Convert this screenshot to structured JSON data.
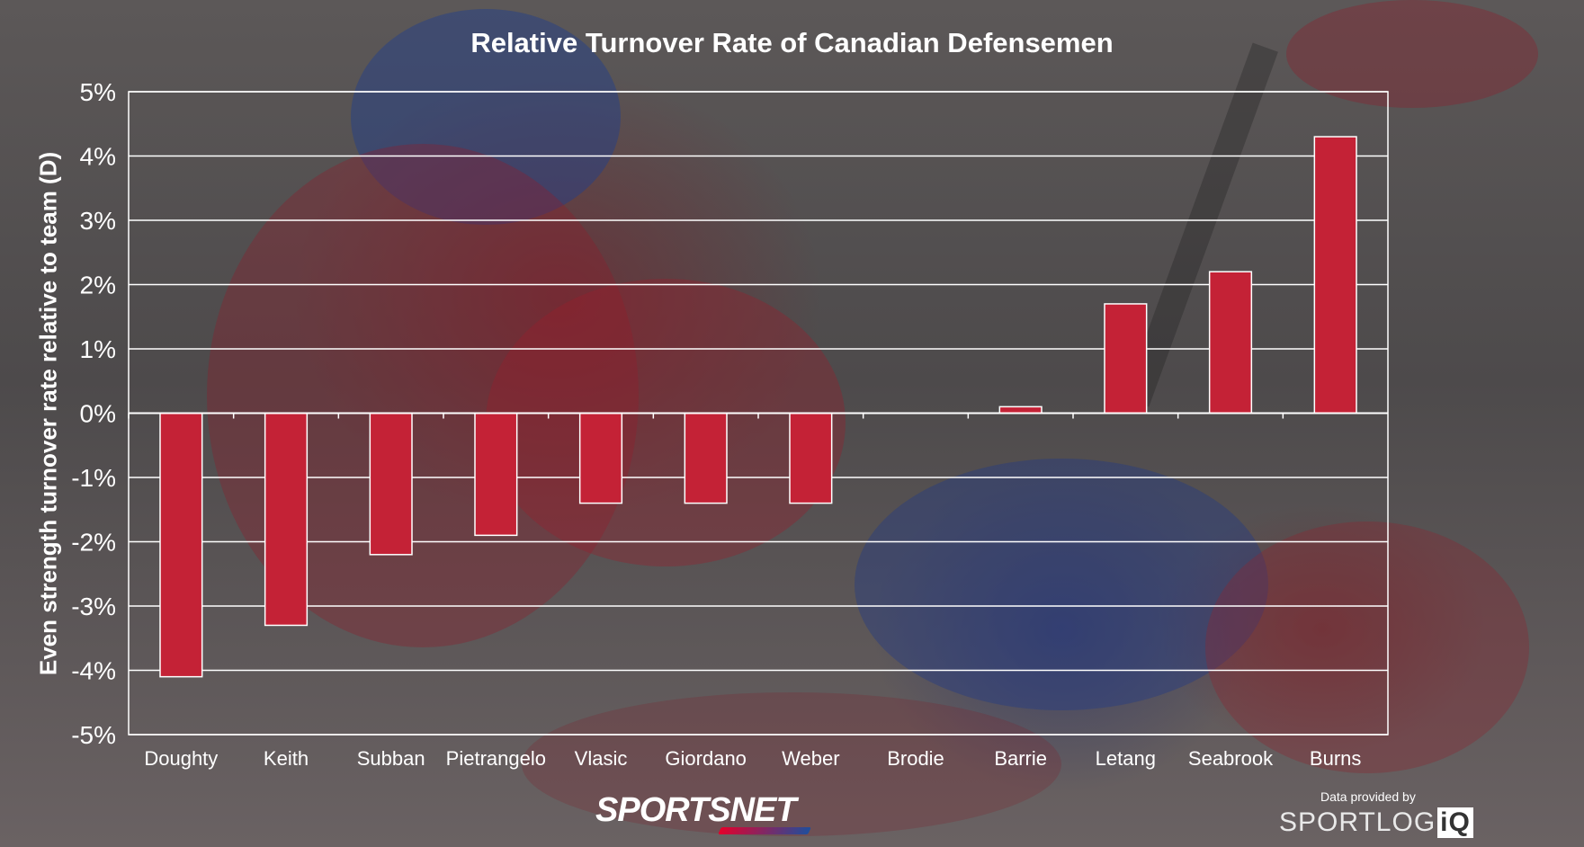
{
  "chart_data": {
    "type": "bar",
    "title": "Relative Turnover Rate of Canadian Defensemen",
    "ylabel": "Even strength turnover rate relative to team (D)",
    "xlabel": "",
    "categories": [
      "Doughty",
      "Keith",
      "Subban",
      "Pietrangelo",
      "Vlasic",
      "Giordano",
      "Weber",
      "Brodie",
      "Barrie",
      "Letang",
      "Seabrook",
      "Burns"
    ],
    "values": [
      -4.1,
      -3.3,
      -2.2,
      -1.9,
      -1.4,
      -1.4,
      -1.4,
      0.0,
      0.1,
      1.7,
      2.2,
      4.3
    ],
    "ylim": [
      -5,
      5
    ],
    "yticks": [
      "-5%",
      "-4%",
      "-3%",
      "-2%",
      "-1%",
      "0%",
      "1%",
      "2%",
      "3%",
      "4%",
      "5%"
    ],
    "grid": true,
    "bar_color": "#c42236",
    "grid_color": "#ffffff"
  },
  "branding": {
    "logo_text": "SPORTSNET",
    "credit_text": "Data provided by",
    "sponsor_text": "SPORTLOG",
    "sponsor_suffix": "iQ"
  }
}
